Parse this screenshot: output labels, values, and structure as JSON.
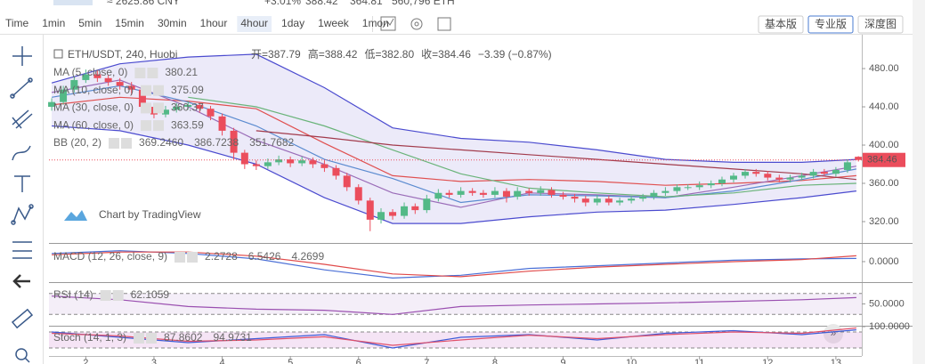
{
  "ticker": {
    "cny": "≈ 2625.86 CNY",
    "change": "+3.01%",
    "high": "388.42",
    "low": "364.81",
    "volume": "560,796 ETH"
  },
  "toolbar": {
    "intervals": [
      "Time",
      "1min",
      "5min",
      "15min",
      "30min",
      "1hour",
      "4hour",
      "1day",
      "1week",
      "1mon"
    ],
    "selected": "4hour",
    "modes": [
      "基本版",
      "专业版",
      "深度图"
    ],
    "selected_mode": "专业版"
  },
  "watermark": "Chart by TradingView",
  "chart_data": {
    "type": "candlestick",
    "title": "ETH/USDT, 240, Huobi",
    "header": [
      {
        "label": "开=",
        "value": "387.79"
      },
      {
        "label": "高=",
        "value": "388.42"
      },
      {
        "label": "低=",
        "value": "382.80"
      },
      {
        "label": "收=",
        "value": "384.46"
      }
    ],
    "change": "−3.39 (−0.87%)",
    "up_color": "#53b987",
    "down_color": "#eb4d5c",
    "xlim": [
      1.46,
      13.38
    ],
    "xticks": [
      2,
      3,
      4,
      5,
      6,
      7,
      8,
      9,
      10,
      11,
      12,
      13
    ],
    "ylim": [
      298.6,
      512.6
    ],
    "yticks": [
      {
        "value": 320,
        "label": "320.00"
      },
      {
        "value": 360,
        "label": "360.00"
      },
      {
        "value": 400,
        "label": "400.00"
      },
      {
        "value": 440,
        "label": "440.00"
      },
      {
        "value": 480,
        "label": "480.00"
      }
    ],
    "x": [
      1.5,
      1.67,
      1.83,
      2,
      2.17,
      2.33,
      2.5,
      2.67,
      2.83,
      3,
      3.17,
      3.33,
      3.5,
      3.67,
      3.83,
      4,
      4.17,
      4.33,
      4.5,
      4.67,
      4.83,
      5,
      5.17,
      5.33,
      5.5,
      5.67,
      5.83,
      6,
      6.17,
      6.33,
      6.5,
      6.67,
      6.83,
      7,
      7.17,
      7.33,
      7.5,
      7.67,
      7.83,
      8,
      8.17,
      8.33,
      8.5,
      8.67,
      8.83,
      9,
      9.17,
      9.33,
      9.5,
      9.67,
      9.83,
      10,
      10.17,
      10.33,
      10.5,
      10.67,
      10.83,
      11,
      11.17,
      11.33,
      11.5,
      11.67,
      11.83,
      12,
      12.17,
      12.33,
      12.5,
      12.67,
      12.83,
      13,
      13.17,
      13.33
    ],
    "open": [
      440,
      445,
      458,
      468,
      474,
      470,
      466,
      462,
      458,
      440,
      432,
      437,
      440,
      442,
      438,
      430,
      415,
      392,
      380,
      378,
      382,
      385,
      381,
      384,
      380,
      376,
      368,
      356,
      342,
      322,
      330,
      326,
      336,
      332,
      344,
      350,
      348,
      352,
      350,
      348,
      352,
      346,
      352,
      350,
      353,
      348,
      346,
      344,
      340,
      344,
      340,
      342,
      344,
      346,
      350,
      352,
      356,
      356,
      358,
      360,
      364,
      368,
      372,
      370,
      366,
      364,
      366,
      368,
      372,
      370,
      374,
      387.79
    ],
    "high": [
      449,
      462,
      472,
      479,
      478,
      473,
      470,
      466,
      461,
      444,
      441,
      444,
      446,
      445,
      441,
      433,
      418,
      395,
      384,
      386,
      389,
      388,
      388,
      387,
      384,
      379,
      371,
      359,
      345,
      334,
      333,
      340,
      339,
      348,
      354,
      353,
      356,
      355,
      353,
      356,
      355,
      356,
      355,
      357,
      356,
      351,
      349,
      347,
      348,
      347,
      345,
      347,
      349,
      353,
      356,
      359,
      359,
      362,
      363,
      367,
      371,
      375,
      375,
      373,
      369,
      369,
      371,
      375,
      375,
      377,
      385,
      388.42
    ],
    "low": [
      436,
      442,
      455,
      465,
      466,
      462,
      458,
      452,
      436,
      428,
      429,
      434,
      437,
      434,
      426,
      410,
      385,
      375,
      374,
      375,
      379,
      377,
      378,
      376,
      372,
      364,
      352,
      338,
      310,
      318,
      322,
      323,
      328,
      329,
      341,
      345,
      345,
      347,
      345,
      345,
      340,
      343,
      347,
      347,
      345,
      343,
      340,
      336,
      337,
      337,
      337,
      339,
      341,
      343,
      347,
      349,
      353,
      353,
      355,
      357,
      361,
      365,
      367,
      363,
      361,
      361,
      363,
      365,
      367,
      367,
      371,
      382.8
    ],
    "close": [
      445,
      458,
      468,
      474,
      470,
      466,
      462,
      458,
      440,
      432,
      437,
      440,
      442,
      438,
      430,
      415,
      392,
      380,
      378,
      382,
      385,
      381,
      384,
      380,
      376,
      368,
      356,
      342,
      322,
      330,
      326,
      336,
      332,
      344,
      350,
      348,
      352,
      350,
      348,
      352,
      346,
      352,
      350,
      353,
      348,
      346,
      344,
      340,
      344,
      340,
      342,
      344,
      346,
      350,
      352,
      356,
      356,
      358,
      360,
      364,
      368,
      372,
      370,
      366,
      364,
      366,
      368,
      372,
      370,
      374,
      382,
      384.46
    ],
    "bb": {
      "name": "BB (20, 2)",
      "legend_values": [
        "369.2460",
        "386.7238",
        "351.7682"
      ],
      "fill": "rgba(150,140,220,0.18)",
      "series": [
        {
          "color": "#e05050",
          "x": [
            1.5,
            2.5,
            3.5,
            4.5,
            5.5,
            6.5,
            7.5,
            8.5,
            9.5,
            10.5,
            11.5,
            12.5,
            13.3
          ],
          "values": [
            442,
            450,
            446,
            438,
            402,
            368,
            362,
            364,
            362,
            358,
            360,
            363,
            368
          ]
        },
        {
          "color": "#4b4bcf",
          "x": [
            1.5,
            2.5,
            3.5,
            4.5,
            5.5,
            6.5,
            7.5,
            8.5,
            9.5,
            10.5,
            11.5,
            12.5,
            13.3
          ],
          "values": [
            465,
            485,
            492,
            495,
            460,
            418,
            407,
            403,
            395,
            385,
            382,
            382,
            385
          ]
        },
        {
          "color": "#4b4bcf",
          "x": [
            1.5,
            2.5,
            3.5,
            4.5,
            5.5,
            6.5,
            7.5,
            8.5,
            9.5,
            10.5,
            11.5,
            12.5,
            13.3
          ],
          "values": [
            420,
            415,
            400,
            380,
            345,
            318,
            318,
            325,
            330,
            332,
            338,
            345,
            352
          ]
        }
      ]
    },
    "series": [
      {
        "name": "MA (5, close, 0)",
        "legend_value": 380.21,
        "color": "#9a6cb8",
        "x": [
          1.5,
          2.5,
          3.5,
          4.5,
          5.5,
          6.5,
          7.5,
          8.5,
          9.5,
          10.5,
          11.5,
          12.5,
          13.3
        ],
        "values": [
          455,
          468,
          440,
          405,
          380,
          350,
          335,
          350,
          348,
          345,
          356,
          368,
          378
        ]
      },
      {
        "name": "MA (10, close, 0)",
        "legend_value": 375.09,
        "color": "#5b8bd0",
        "x": [
          1.5,
          2.5,
          3.5,
          4.5,
          5.5,
          6.5,
          7.5,
          8.5,
          9.5,
          10.5,
          11.5,
          12.5,
          13.3
        ],
        "values": [
          450,
          462,
          445,
          420,
          385,
          365,
          340,
          348,
          347,
          345,
          352,
          364,
          375
        ]
      },
      {
        "name": "MA (30, close, 0)",
        "legend_value": 360.37,
        "color": "#6ab47a",
        "x": [
          1.5,
          2.5,
          3.5,
          4.5,
          5.5,
          6.5,
          7.5,
          8.5,
          9.5,
          10.5,
          11.5,
          12.5,
          13.3
        ],
        "values": [
          null,
          null,
          450,
          440,
          420,
          395,
          370,
          355,
          350,
          346,
          350,
          358,
          360
        ]
      },
      {
        "name": "MA (60, close, 0)",
        "legend_value": 363.59,
        "color": "#a23b4c",
        "x": [
          1.5,
          2.5,
          3.5,
          4.5,
          5.5,
          6.5,
          7.5,
          8.5,
          9.5,
          10.5,
          11.5,
          12.5,
          13.3
        ],
        "values": [
          null,
          null,
          null,
          415,
          408,
          400,
          395,
          390,
          385,
          380,
          375,
          370,
          364
        ]
      }
    ],
    "panes": [
      {
        "name": "MACD (12, 26, close, 9)",
        "legend_values": [
          "2.2728",
          "6.5426",
          "4.2699"
        ],
        "ylim": [
          -15,
          13
        ],
        "yticks": [
          {
            "value": 0,
            "label": "0.0000"
          }
        ],
        "series": [
          {
            "color": "#4a6fd6",
            "x": [
              1.5,
              2.5,
              3.5,
              4.5,
              5.5,
              6.5,
              7.5,
              8.5,
              9.5,
              10.5,
              11.5,
              12.5,
              13.3
            ],
            "values": [
              6,
              8,
              6,
              2,
              -6,
              -12,
              -10,
              -5,
              -3,
              -1,
              1,
              2,
              2.3
            ]
          },
          {
            "color": "#e04a4a",
            "x": [
              1.5,
              2.5,
              3.5,
              4.5,
              5.5,
              6.5,
              7.5,
              8.5,
              9.5,
              10.5,
              11.5,
              12.5,
              13.3
            ],
            "values": [
              5,
              7,
              7,
              4,
              -2,
              -9,
              -11,
              -7,
              -4,
              -2,
              0,
              1.5,
              4.3
            ]
          }
        ]
      },
      {
        "name": "RSI (14)",
        "legend_values": [
          "62.1059"
        ],
        "ylim": [
          10,
          90
        ],
        "yticks": [
          {
            "value": 50,
            "label": "50.0000"
          }
        ],
        "bands": [
          30,
          70
        ],
        "series": [
          {
            "color": "#9a4fb0",
            "x": [
              1.5,
              2.5,
              3.5,
              4.5,
              5.5,
              6.5,
              7.5,
              8.5,
              9.5,
              10.5,
              11.5,
              12.5,
              13.3
            ],
            "values": [
              65,
              58,
              45,
              40,
              38,
              30,
              45,
              48,
              50,
              52,
              55,
              58,
              62
            ]
          }
        ]
      },
      {
        "name": "Stoch (14, 1, 3)",
        "legend_values": [
          "87.8602",
          "94.9731"
        ],
        "ylim": [
          -10,
          100
        ],
        "yticks": [
          {
            "value": 100,
            "label": "100.0000"
          }
        ],
        "bands": [
          20,
          80
        ],
        "series": [
          {
            "color": "#3d5bd8",
            "x": [
              1.5,
              2.5,
              3.5,
              4.5,
              5.5,
              6.5,
              7.5,
              8.5,
              9.5,
              10.5,
              11.5,
              12.5,
              13.3
            ],
            "values": [
              80,
              60,
              40,
              55,
              70,
              20,
              60,
              70,
              50,
              75,
              85,
              70,
              88
            ]
          },
          {
            "color": "#e0506a",
            "x": [
              1.5,
              2.5,
              3.5,
              4.5,
              5.5,
              6.5,
              7.5,
              8.5,
              9.5,
              10.5,
              11.5,
              12.5,
              13.3
            ],
            "values": [
              75,
              65,
              45,
              50,
              62,
              30,
              50,
              68,
              55,
              70,
              80,
              75,
              95
            ]
          }
        ]
      }
    ]
  }
}
